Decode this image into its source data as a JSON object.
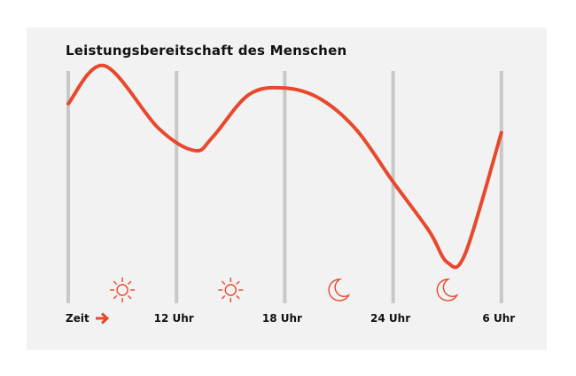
{
  "chart_data": {
    "type": "line",
    "title": "Leistungsbereitschaft des Menschen",
    "axis_label": "Zeit",
    "x_ticks": [
      "12 Uhr",
      "18 Uhr",
      "24 Uhr",
      "6 Uhr"
    ],
    "period_icons": [
      "sun-icon",
      "sun-icon",
      "moon-icon",
      "moon-icon"
    ],
    "series": [
      {
        "x": [
          6,
          8,
          11,
          13,
          14,
          16,
          18,
          20,
          22,
          24,
          26,
          3,
          4,
          6
        ],
        "y": [
          0.79,
          0.96,
          0.68,
          0.58,
          0.64,
          0.83,
          0.86,
          0.81,
          0.67,
          0.44,
          0.22,
          0.08,
          0.12,
          0.66
        ]
      }
    ],
    "y_scale": "relative",
    "grid": "vertical",
    "colors": {
      "line": "#e8482b",
      "grid": "#c8c8c8",
      "background": "#f2f2f2"
    }
  }
}
